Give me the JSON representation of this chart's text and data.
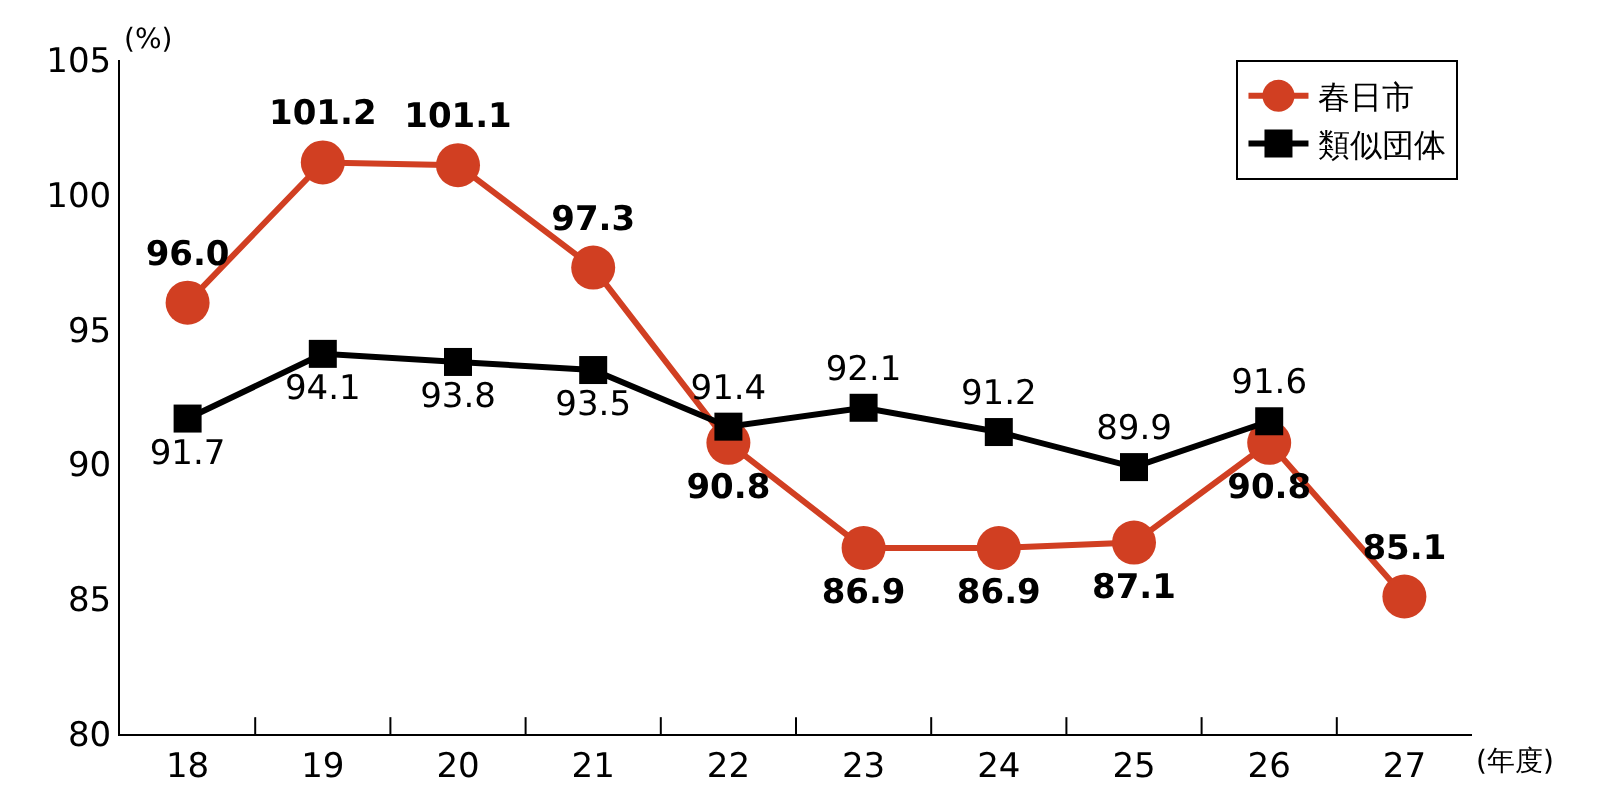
{
  "chart_data": {
    "type": "line",
    "ylabel": "(%)",
    "xlabel": "(年度)",
    "categories": [
      "18",
      "19",
      "20",
      "21",
      "22",
      "23",
      "24",
      "25",
      "26",
      "27"
    ],
    "series": [
      {
        "name": "春日市",
        "color": "#d13f22",
        "marker": "circle",
        "values": [
          96.0,
          101.2,
          101.1,
          97.3,
          90.8,
          86.9,
          86.9,
          87.1,
          90.8,
          85.1
        ],
        "value_labels": [
          "96.0",
          "101.2",
          "101.1",
          "97.3",
          "90.8",
          "86.9",
          "86.9",
          "87.1",
          "90.8",
          "85.1"
        ]
      },
      {
        "name": "類似団体",
        "color": "#000000",
        "marker": "square",
        "values": [
          91.7,
          94.1,
          93.8,
          93.5,
          91.4,
          92.1,
          91.2,
          89.9,
          91.6,
          null
        ],
        "value_labels": [
          "91.7",
          "94.1",
          "93.8",
          "93.5",
          "91.4",
          "92.1",
          "91.2",
          "89.9",
          "91.6",
          null
        ]
      }
    ],
    "ylim": [
      80,
      105
    ],
    "yticks": [
      80,
      85,
      90,
      95,
      100,
      105
    ],
    "legend": "top right",
    "line_style": "solid"
  }
}
